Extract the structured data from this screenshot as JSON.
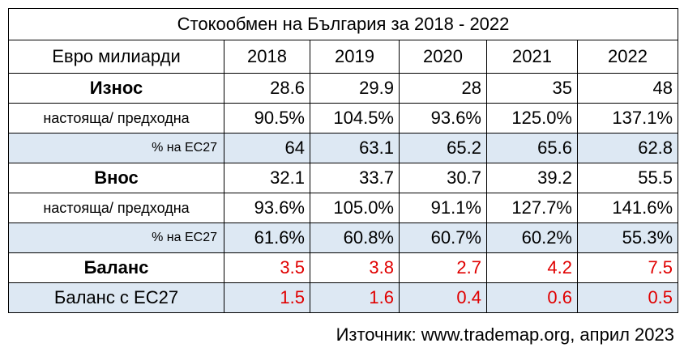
{
  "table": {
    "title": "Стокообмен на България за 2018 - 2022",
    "header": [
      "Евро милиарди",
      "2018",
      "2019",
      "2020",
      "2021",
      "2022"
    ],
    "rows": [
      [
        "Износ",
        "28.6",
        "29.9",
        "28",
        "35",
        "48"
      ],
      [
        "настояща/ предходна",
        "90.5%",
        "104.5%",
        "93.6%",
        "125.0%",
        "137.1%"
      ],
      [
        "% на ЕС27",
        "64",
        "63.1",
        "65.2",
        "65.6",
        "62.8"
      ],
      [
        "Внос",
        "32.1",
        "33.7",
        "30.7",
        "39.2",
        "55.5"
      ],
      [
        "настояща/ предходна",
        "93.6%",
        "105.0%",
        "91.1%",
        "127.7%",
        "141.6%"
      ],
      [
        "% на ЕС27",
        "61.6%",
        "60.8%",
        "60.7%",
        "60.2%",
        "55.3%"
      ],
      [
        "Баланс",
        "3.5",
        "3.8",
        "2.7",
        "4.2",
        "7.5"
      ],
      [
        "Баланс с ЕС27",
        "1.5",
        "1.6",
        "0.4",
        "0.6",
        "0.5"
      ]
    ]
  },
  "source": "Източник: www.trademap.org, април 2023"
}
